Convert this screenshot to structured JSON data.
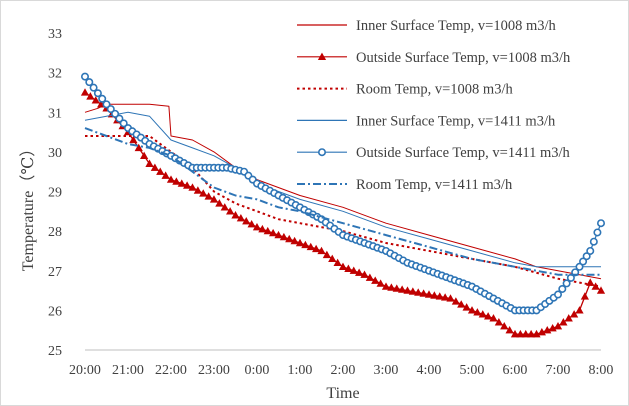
{
  "chart_data": {
    "type": "line",
    "title": "",
    "xlabel": "Time",
    "ylabel": "Temperature（℃）",
    "ylim": [
      25,
      33
    ],
    "yticks": [
      25,
      26,
      27,
      28,
      29,
      30,
      31,
      32,
      33
    ],
    "grid": false,
    "legend_position": "top-right",
    "categories": [
      "20:00",
      "21:00",
      "22:00",
      "23:00",
      "0:00",
      "1:00",
      "2:00",
      "3:00",
      "4:00",
      "5:00",
      "6:00",
      "7:00",
      "8:00"
    ],
    "series": [
      {
        "name": "Inner Surface Temp, v=1008 m3/h",
        "color": "#c00000",
        "style": "solid",
        "marker": "none",
        "points": [
          [
            0,
            31.0
          ],
          [
            0.3,
            31.1
          ],
          [
            0.5,
            31.2
          ],
          [
            1.0,
            31.2
          ],
          [
            1.5,
            31.2
          ],
          [
            1.95,
            31.15
          ],
          [
            2.0,
            30.4
          ],
          [
            2.5,
            30.3
          ],
          [
            3.0,
            30.0
          ],
          [
            3.5,
            29.6
          ],
          [
            4.0,
            29.3
          ],
          [
            5.0,
            28.9
          ],
          [
            6.0,
            28.6
          ],
          [
            7.0,
            28.2
          ],
          [
            8.0,
            27.9
          ],
          [
            9.0,
            27.6
          ],
          [
            10.0,
            27.3
          ],
          [
            10.5,
            27.1
          ],
          [
            11.0,
            27.0
          ],
          [
            11.5,
            26.9
          ],
          [
            12.0,
            26.8
          ]
        ]
      },
      {
        "name": "Outside Surface Temp, v=1008 m3/h",
        "color": "#c00000",
        "style": "solid",
        "marker": "triangle",
        "points": [
          [
            0,
            31.5
          ],
          [
            0.5,
            31.1
          ],
          [
            1.0,
            30.5
          ],
          [
            1.5,
            29.7
          ],
          [
            2.0,
            29.3
          ],
          [
            2.5,
            29.1
          ],
          [
            3.0,
            28.8
          ],
          [
            3.5,
            28.4
          ],
          [
            4.0,
            28.1
          ],
          [
            4.5,
            27.9
          ],
          [
            5.0,
            27.7
          ],
          [
            5.5,
            27.5
          ],
          [
            6.0,
            27.1
          ],
          [
            6.5,
            26.9
          ],
          [
            7.0,
            26.6
          ],
          [
            7.5,
            26.5
          ],
          [
            8.0,
            26.4
          ],
          [
            8.5,
            26.3
          ],
          [
            9.0,
            26.0
          ],
          [
            9.5,
            25.8
          ],
          [
            10.0,
            25.4
          ],
          [
            10.5,
            25.4
          ],
          [
            11.0,
            25.6
          ],
          [
            11.5,
            26.0
          ],
          [
            11.75,
            26.7
          ],
          [
            12.0,
            26.5
          ]
        ]
      },
      {
        "name": "Room Temp, v=1008 m3/h",
        "color": "#c00000",
        "style": "dotted",
        "marker": "none",
        "points": [
          [
            0,
            30.4
          ],
          [
            0.5,
            30.4
          ],
          [
            1.0,
            30.4
          ],
          [
            1.5,
            30.4
          ],
          [
            2.0,
            30.0
          ],
          [
            2.5,
            29.6
          ],
          [
            3.0,
            29.0
          ],
          [
            3.5,
            28.7
          ],
          [
            4.0,
            28.5
          ],
          [
            4.5,
            28.3
          ],
          [
            5.0,
            28.2
          ],
          [
            6.0,
            28.0
          ],
          [
            7.0,
            27.7
          ],
          [
            8.0,
            27.5
          ],
          [
            9.0,
            27.3
          ],
          [
            10.0,
            27.1
          ],
          [
            11.0,
            26.8
          ],
          [
            11.5,
            26.7
          ],
          [
            12.0,
            26.6
          ]
        ]
      },
      {
        "name": "Inner Surface Temp, v=1411 m3/h",
        "color": "#2e75b6",
        "style": "solid",
        "marker": "none",
        "points": [
          [
            0,
            30.8
          ],
          [
            0.5,
            30.9
          ],
          [
            1.0,
            31.0
          ],
          [
            1.5,
            30.9
          ],
          [
            2.0,
            30.3
          ],
          [
            2.5,
            30.1
          ],
          [
            3.0,
            29.9
          ],
          [
            3.5,
            29.6
          ],
          [
            4.0,
            29.2
          ],
          [
            5.0,
            28.8
          ],
          [
            6.0,
            28.5
          ],
          [
            7.0,
            28.1
          ],
          [
            8.0,
            27.8
          ],
          [
            9.0,
            27.5
          ],
          [
            10.0,
            27.2
          ],
          [
            10.5,
            27.1
          ],
          [
            11.0,
            27.1
          ],
          [
            11.5,
            27.1
          ],
          [
            12.0,
            27.1
          ]
        ]
      },
      {
        "name": "Outside Surface Temp, v=1411 m3/h",
        "color": "#2e75b6",
        "style": "solid",
        "marker": "circle",
        "points": [
          [
            0,
            31.9
          ],
          [
            0.5,
            31.2
          ],
          [
            1.0,
            30.6
          ],
          [
            1.5,
            30.2
          ],
          [
            2.0,
            29.9
          ],
          [
            2.5,
            29.6
          ],
          [
            3.0,
            29.6
          ],
          [
            3.3,
            29.6
          ],
          [
            3.7,
            29.5
          ],
          [
            4.0,
            29.2
          ],
          [
            4.5,
            28.9
          ],
          [
            5.0,
            28.6
          ],
          [
            5.5,
            28.3
          ],
          [
            6.0,
            27.9
          ],
          [
            6.5,
            27.7
          ],
          [
            7.0,
            27.5
          ],
          [
            7.5,
            27.2
          ],
          [
            8.0,
            27.0
          ],
          [
            8.5,
            26.8
          ],
          [
            9.0,
            26.6
          ],
          [
            9.5,
            26.3
          ],
          [
            10.0,
            26.0
          ],
          [
            10.5,
            26.0
          ],
          [
            11.0,
            26.4
          ],
          [
            11.5,
            27.1
          ],
          [
            11.75,
            27.5
          ],
          [
            12.0,
            28.2
          ]
        ]
      },
      {
        "name": "Room Temp, v=1411 m3/h",
        "color": "#2e75b6",
        "style": "dashdot",
        "marker": "none",
        "points": [
          [
            0,
            30.6
          ],
          [
            0.5,
            30.4
          ],
          [
            1.0,
            30.2
          ],
          [
            1.5,
            30.1
          ],
          [
            2.0,
            29.9
          ],
          [
            2.5,
            29.5
          ],
          [
            3.0,
            29.1
          ],
          [
            3.5,
            28.9
          ],
          [
            4.0,
            28.8
          ],
          [
            4.5,
            28.6
          ],
          [
            5.0,
            28.5
          ],
          [
            6.0,
            28.2
          ],
          [
            7.0,
            27.9
          ],
          [
            8.0,
            27.6
          ],
          [
            9.0,
            27.3
          ],
          [
            10.0,
            27.1
          ],
          [
            11.0,
            26.9
          ],
          [
            12.0,
            26.9
          ]
        ]
      }
    ]
  }
}
